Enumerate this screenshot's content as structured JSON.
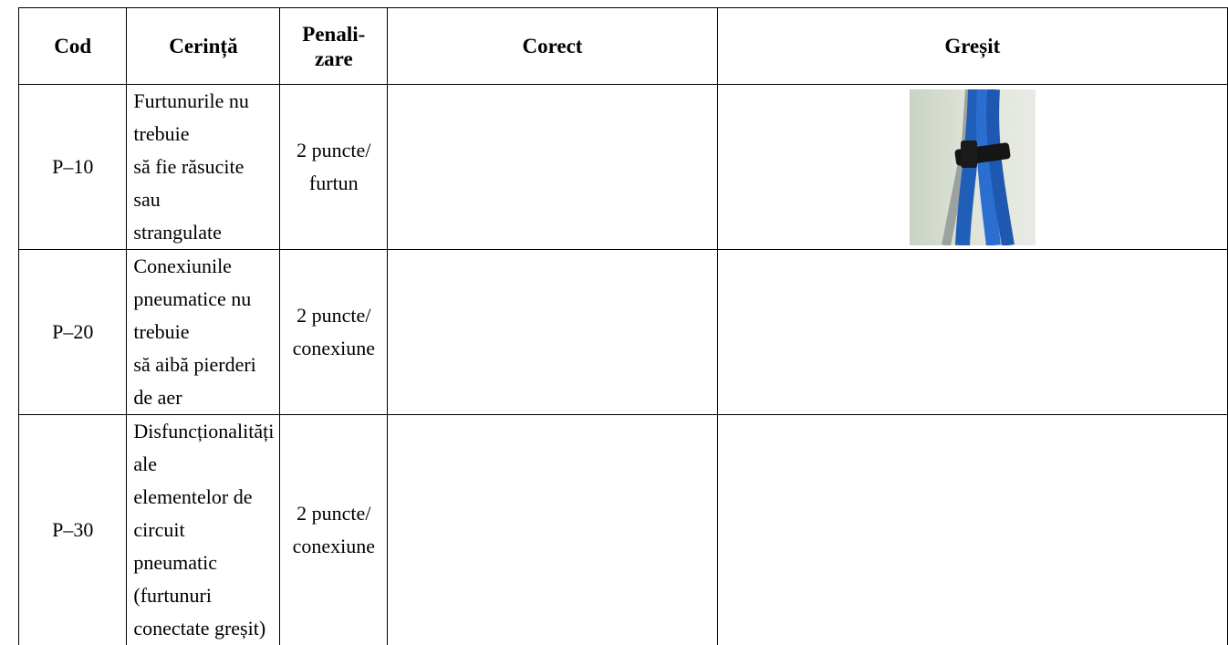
{
  "table": {
    "header": {
      "cod": "Cod",
      "cerinta": "Cerință",
      "penalizare": [
        "Penali-",
        "zare"
      ],
      "corect": "Corect",
      "gresit": "Greșit"
    },
    "rows": [
      {
        "cod": "P–10",
        "cerinta": [
          "Furtunurile nu trebuie",
          "să fie răsucite sau",
          "strangulate"
        ],
        "penalizare": [
          "2 puncte/",
          "furtun"
        ]
      },
      {
        "cod": "P–20",
        "cerinta": [
          "Conexiunile",
          "pneumatice nu trebuie",
          "să aibă pierderi de aer"
        ],
        "penalizare": [
          "2 puncte/",
          "conexiune"
        ]
      },
      {
        "cod": "P–30",
        "cerinta": [
          "Disfuncționalități ale",
          "elementelor de circuit",
          "pneumatic (furtunuri",
          "conectate greșit)"
        ],
        "penalizare": [
          "2 puncte/",
          "conexiune"
        ]
      }
    ]
  }
}
